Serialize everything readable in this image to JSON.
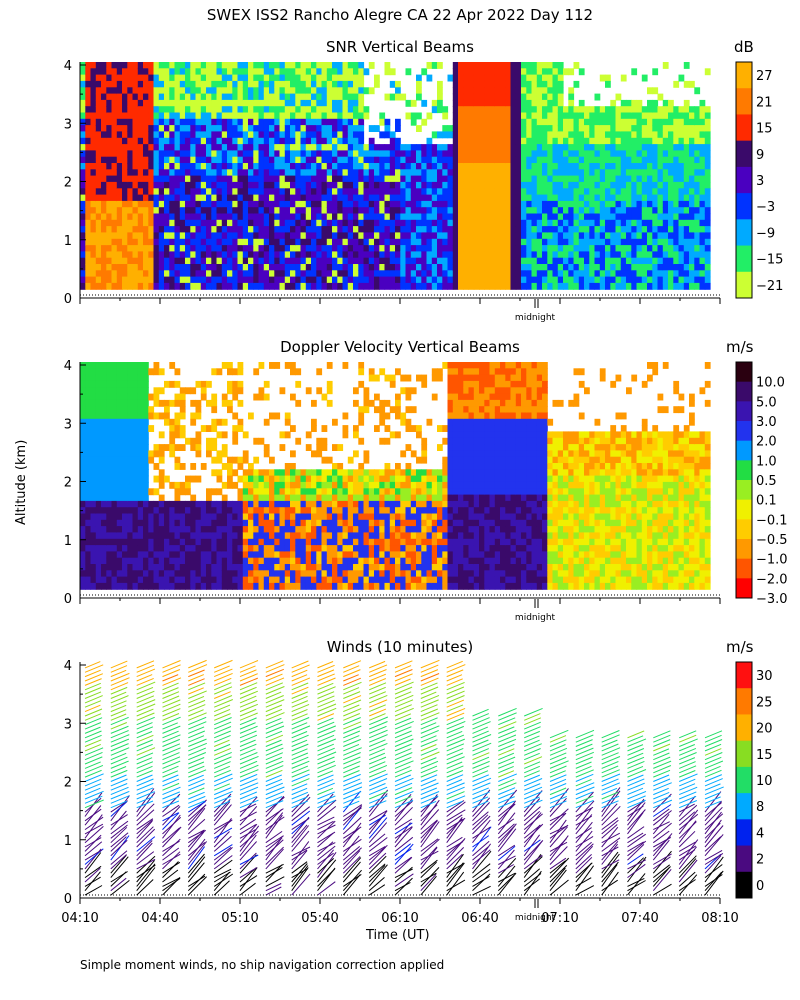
{
  "figure": {
    "title": "SWEX ISS2 Rancho Alegre CA  22 Apr 2022 Day 112",
    "ylabel": "Altitude (km)",
    "xlabel": "Time (UT)",
    "midnight_label": "midnight",
    "footnote": "Simple moment winds, no ship navigation correction applied"
  },
  "chart_data": [
    {
      "type": "heatmap",
      "title": "SNR Vertical Beams",
      "colorbar_unit": "dB",
      "ylim": [
        0,
        4
      ],
      "yticks": [
        "0",
        "1",
        "2",
        "3",
        "4"
      ],
      "xlim": [
        "04:10",
        "08:10"
      ],
      "colorbar_labels": [
        "27",
        "21",
        "15",
        "9",
        "3",
        "−3",
        "−9",
        "−15",
        "−21"
      ],
      "colorbar_colors": [
        "#ffb000",
        "#ff7a00",
        "#ff2a00",
        "#3a0a6a",
        "#4a00c0",
        "#0033ff",
        "#00aaff",
        "#22ee66",
        "#ccff33"
      ],
      "high_snr_periods": [
        [
          "04:10",
          "04:40"
        ],
        [
          "06:25",
          "06:55"
        ]
      ]
    },
    {
      "type": "heatmap",
      "title": "Doppler Velocity Vertical Beams",
      "colorbar_unit": "m/s",
      "ylim": [
        0,
        4
      ],
      "yticks": [
        "0",
        "1",
        "2",
        "3",
        "4"
      ],
      "xlim": [
        "04:10",
        "08:10"
      ],
      "colorbar_labels": [
        "10.0",
        "5.0",
        "3.0",
        "2.0",
        "1.0",
        "0.5",
        "0.1",
        "−0.1",
        "−0.5",
        "−1.0",
        "−2.0",
        "−3.0"
      ],
      "colorbar_colors": [
        "#2a0010",
        "#3a0a6a",
        "#3a14b0",
        "#2233ee",
        "#0099ff",
        "#22dd44",
        "#99ee22",
        "#f0f000",
        "#ffcc00",
        "#ff9900",
        "#ff5500",
        "#ff0000"
      ]
    },
    {
      "type": "scatter",
      "title": "Winds (10 minutes)",
      "colorbar_unit": "m/s",
      "ylim": [
        0,
        4
      ],
      "yticks": [
        "0",
        "1",
        "2",
        "3",
        "4"
      ],
      "xticks": [
        "04:10",
        "04:40",
        "05:10",
        "05:40",
        "06:10",
        "06:40",
        "07:10",
        "07:40",
        "08:10"
      ],
      "colorbar_labels": [
        "30",
        "25",
        "20",
        "15",
        "10",
        "8",
        "4",
        "2",
        "0"
      ],
      "colorbar_colors": [
        "#ff1010",
        "#ff7a00",
        "#ffb000",
        "#88dd22",
        "#22dd66",
        "#00aaff",
        "#0022ee",
        "#4a0a80",
        "#000000"
      ]
    }
  ]
}
